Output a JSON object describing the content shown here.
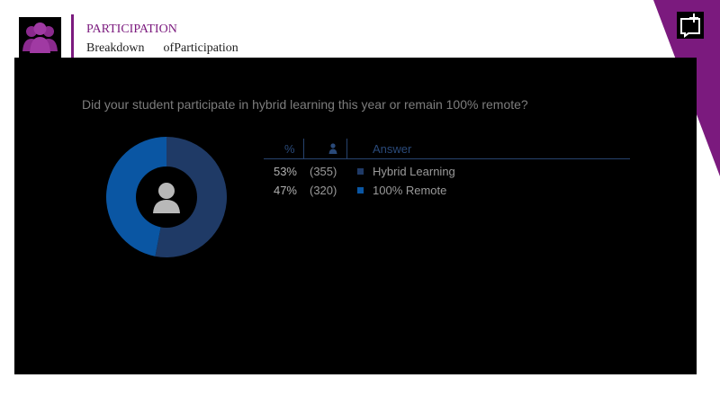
{
  "header": {
    "title": "PARTICIPATION",
    "subtitle": "Breakdown      ofParticipation"
  },
  "icons": {
    "logo": "people-group-icon",
    "corner": "comment-add-icon",
    "center": "person-icon",
    "count_header": "person-icon"
  },
  "colors": {
    "accent": "#7b1a7e",
    "hybrid": "#1f3a66",
    "remote": "#0a56a3"
  },
  "chart_data": {
    "type": "pie",
    "title": "Did your student participate in hybrid learning this year or remain 100% remote?",
    "columns": {
      "percent": "%",
      "answer": "Answer"
    },
    "rows": [
      {
        "percent": "53%",
        "count": "(355)",
        "answer": "Hybrid Learning",
        "value": 53,
        "color": "#1f3a66"
      },
      {
        "percent": "47%",
        "count": "(320)",
        "answer": "100% Remote",
        "value": 47,
        "color": "#0a56a3"
      }
    ]
  }
}
